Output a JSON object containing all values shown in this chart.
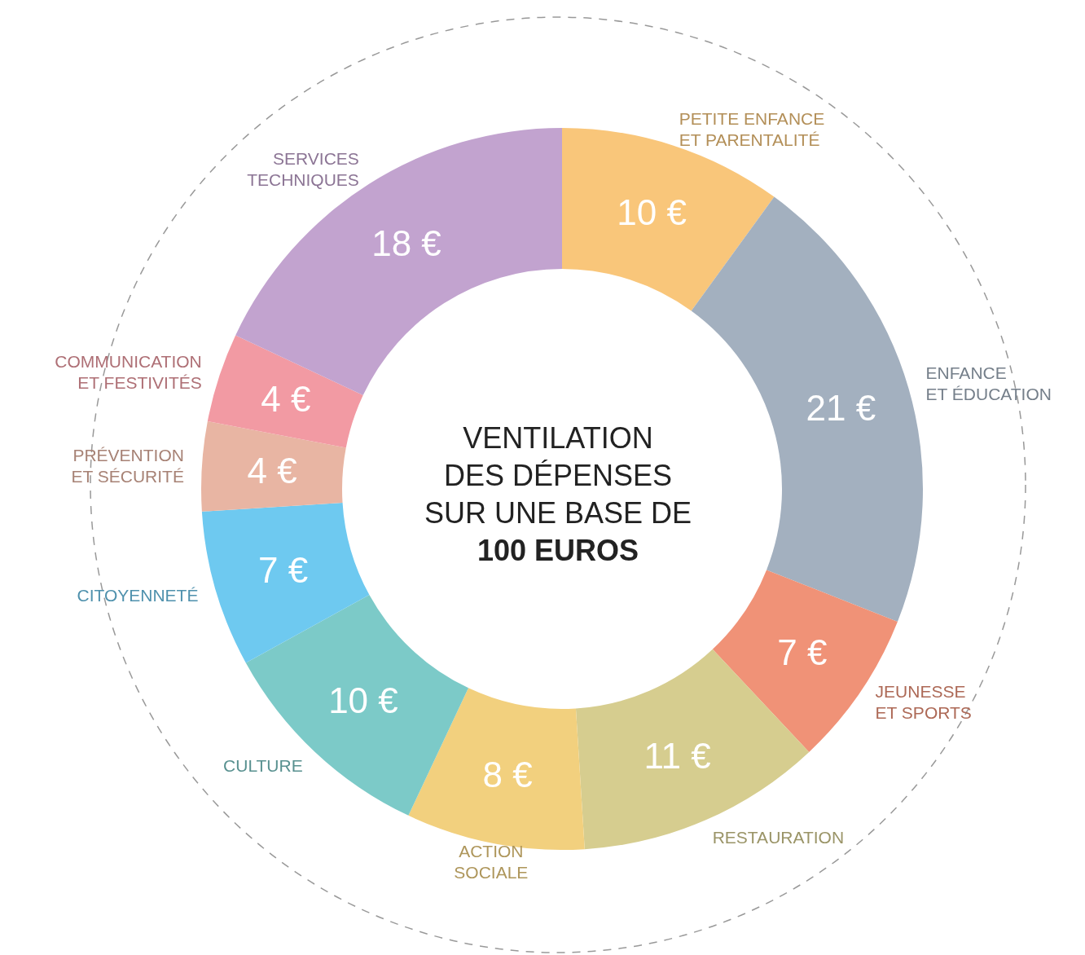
{
  "chart_data": {
    "type": "donut",
    "title": "VENTILATION\nDES DÉPENSES\nSUR UNE BASE DE",
    "subtitle": "100 EUROS",
    "categories": [
      "PETITE ENFANCE\nET PARENTALITÉ",
      "ENFANCE\nET ÉDUCATION",
      "JEUNESSE\nET SPORTS",
      "RESTAURATION",
      "ACTION\nSOCIALE",
      "CULTURE",
      "CITOYENNETÉ",
      "PRÉVENTION\nET SÉCURITÉ",
      "COMMUNICATION\nET FESTIVITÉS",
      "SERVICES\nTECHNIQUES"
    ],
    "values": [
      10,
      21,
      7,
      11,
      8,
      10,
      7,
      4,
      4,
      18
    ],
    "value_labels": [
      "10 €",
      "21 €",
      "7 €",
      "11 €",
      "8 €",
      "10 €",
      "7 €",
      "4 €",
      "4 €",
      "18 €"
    ],
    "colors": [
      "#f9c67a",
      "#a3b0bf",
      "#f09277",
      "#d6cd8f",
      "#f2d07e",
      "#7ccac8",
      "#6ec9f0",
      "#e8b5a3",
      "#f29aa3",
      "#c2a3cf"
    ],
    "legend": false
  }
}
